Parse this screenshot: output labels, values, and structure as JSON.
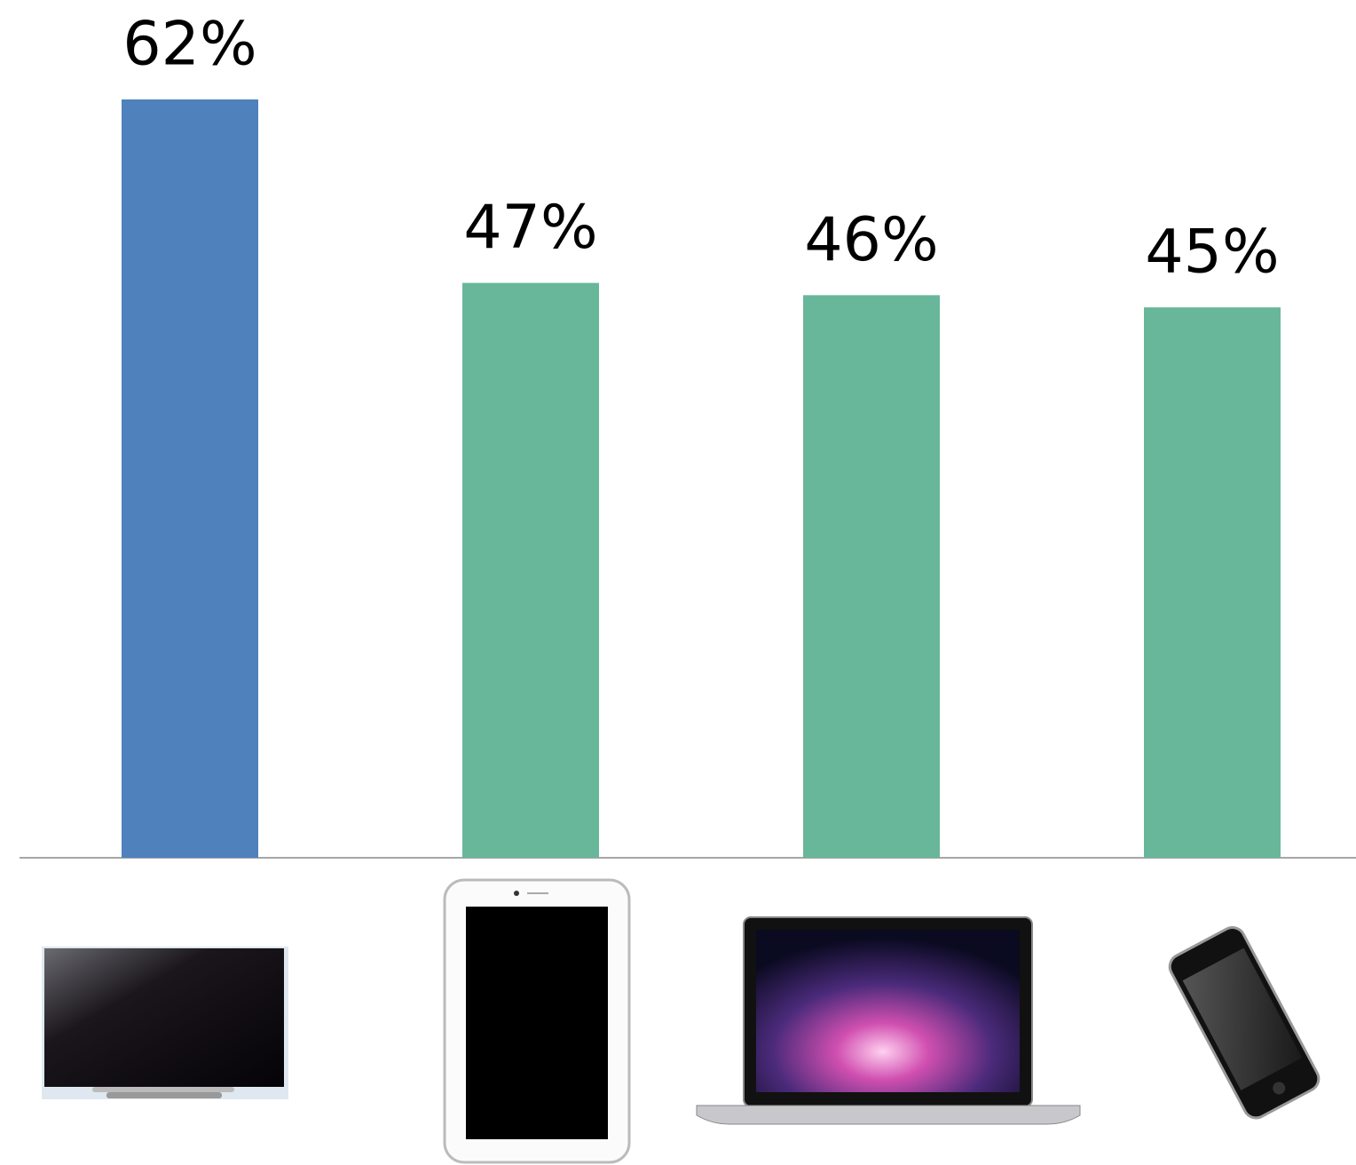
{
  "chart_data": {
    "type": "bar",
    "categories": [
      null,
      null,
      null,
      null
    ],
    "values": [
      62,
      47,
      46,
      45
    ],
    "value_labels": [
      "62%",
      "47%",
      "46%",
      "45%"
    ],
    "colors": [
      "#4f81bd",
      "#68b79b",
      "#68b79b",
      "#68b79b"
    ],
    "ylim": [
      0,
      62
    ]
  }
}
